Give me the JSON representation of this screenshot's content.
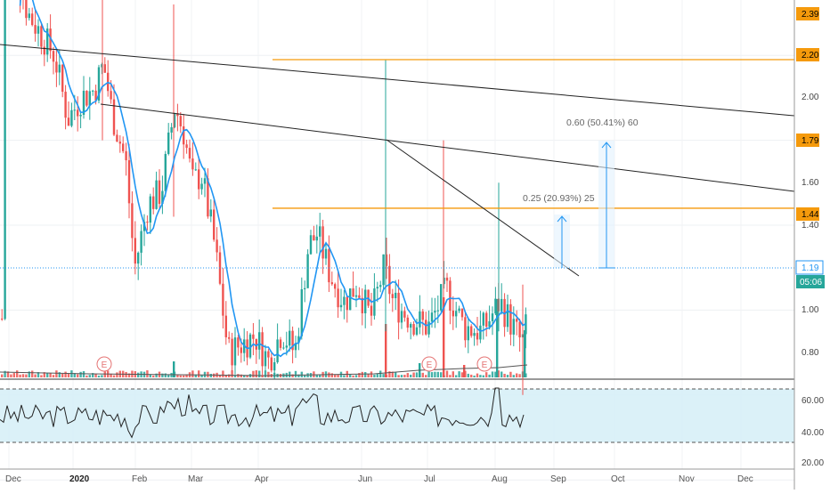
{
  "chart_data": {
    "type": "candlestick",
    "x_tick_labels": [
      "Dec",
      "2020",
      "Feb",
      "Mar",
      "Apr",
      "Jun",
      "Jul",
      "Aug",
      "Sep",
      "Oct",
      "Nov",
      "Dec"
    ],
    "price_axis_labels": [
      "2.00",
      "1.60",
      "1.40",
      "1.00",
      "0.80"
    ],
    "highlighted_levels": [
      "2.39",
      "2.20",
      "1.79",
      "1.44",
      "1.19"
    ],
    "current_price_label": "1.19",
    "countdown_label": "05:06",
    "horizontal_levels": [
      2.39,
      2.2,
      1.79,
      1.44
    ],
    "last_price": 1.19,
    "measure_annotations": [
      {
        "text": "0.60 (50.41%) 60",
        "from": 1.19,
        "to": 1.79
      },
      {
        "text": "0.25 (20.93%) 25",
        "from": 1.19,
        "to": 1.44
      }
    ],
    "earnings_markers": [
      "E",
      "E",
      "E"
    ],
    "rsi": {
      "tick_labels": [
        "60.00",
        "40.00",
        "20.00"
      ],
      "upper_band": 70,
      "lower_band": 30,
      "last_value": 51
    },
    "colors": {
      "up": "#26a69a",
      "down": "#ef5350",
      "ma": "#2196f3",
      "level": "#f59a0c",
      "rsi_band": "#d7f0f7",
      "trendline": "#222222"
    },
    "grid": true
  }
}
